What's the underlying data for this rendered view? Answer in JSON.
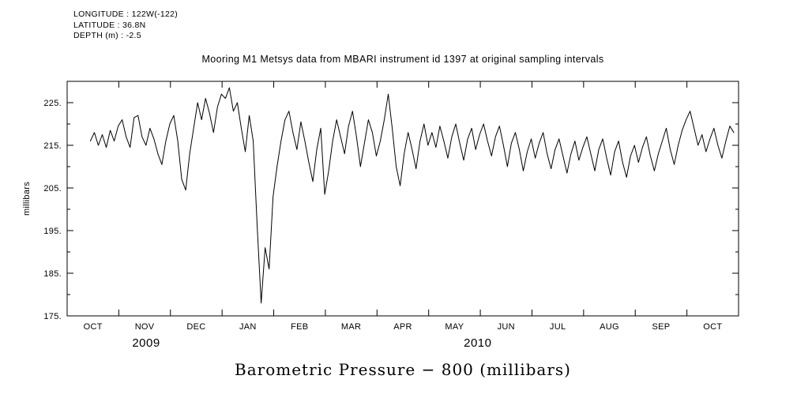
{
  "header": {
    "line1": "LONGITUDE : 122W(-122)",
    "line2": "LATITUDE : 36.8N",
    "line3": "DEPTH (m) : -2.5"
  },
  "title": "Mooring M1 Metsys data from MBARI instrument id 1397 at original sampling intervals",
  "bottom_title": "Barometric Pressure − 800 (millibars)",
  "chart_data": {
    "type": "line",
    "title": "Mooring M1 Metsys data from MBARI instrument id 1397 at original sampling intervals",
    "xlabel": "",
    "ylabel": "millibars",
    "ylim": [
      175,
      230
    ],
    "ytick_values": [
      175,
      185,
      195,
      205,
      215,
      225
    ],
    "ytick_labels": [
      "175.",
      "185.",
      "195.",
      "205.",
      "215.",
      "225."
    ],
    "ytick_minor_values": [
      180,
      190,
      200,
      210,
      220,
      230
    ],
    "x_domain_months": [
      0,
      13
    ],
    "x_months": [
      "OCT",
      "NOV",
      "DEC",
      "JAN",
      "FEB",
      "MAR",
      "APR",
      "MAY",
      "JUN",
      "JUL",
      "AUG",
      "SEP",
      "OCT"
    ],
    "year_labels": [
      {
        "text": "2009",
        "x_month": 1.53
      },
      {
        "text": "2010",
        "x_month": 7.95
      }
    ],
    "grid": false,
    "legend": "none",
    "line_color": "#000000",
    "series": [
      {
        "name": "barometric_pressure_minus_800_millibars",
        "t_start": 0.45,
        "t_step": 0.0769,
        "values": [
          216,
          218,
          215,
          217.5,
          214.5,
          218.5,
          216,
          219.5,
          221,
          217,
          214.5,
          221.5,
          222,
          217,
          215,
          219,
          216.5,
          213,
          210.5,
          216,
          220,
          222,
          216,
          207,
          204.5,
          213,
          219,
          225,
          221,
          226,
          222.5,
          218,
          224,
          227,
          226,
          228.5,
          223,
          225,
          219,
          213.5,
          222,
          216,
          196,
          178,
          191,
          186,
          203,
          210,
          216,
          221,
          223,
          218,
          214,
          220.5,
          216,
          211,
          206.5,
          214,
          219,
          203.5,
          209,
          216,
          221,
          217,
          213,
          219.5,
          223,
          217,
          210,
          215.5,
          221,
          218,
          212.5,
          216,
          221,
          227,
          219,
          210,
          205.5,
          213,
          218,
          214,
          209.5,
          216,
          220,
          215,
          218,
          214.5,
          219.5,
          216,
          212,
          217,
          220,
          215.5,
          211.5,
          216.5,
          219,
          214,
          217.5,
          220,
          216,
          212.5,
          217,
          219.5,
          215,
          210,
          215.5,
          218,
          214,
          209,
          213.5,
          216.5,
          212,
          215.5,
          218,
          213,
          209.5,
          214,
          216.5,
          212.5,
          208.5,
          213,
          216,
          211.5,
          214.5,
          217,
          213,
          209,
          214,
          216.5,
          212,
          208,
          213.5,
          216,
          211,
          207.5,
          212.5,
          215,
          211,
          214.5,
          217,
          212.5,
          209,
          213,
          216,
          219,
          214,
          210.5,
          215,
          218.5,
          221,
          223,
          219,
          215,
          217.5,
          213.5,
          216.5,
          219,
          215,
          212,
          216,
          219.5,
          218
        ]
      }
    ]
  }
}
